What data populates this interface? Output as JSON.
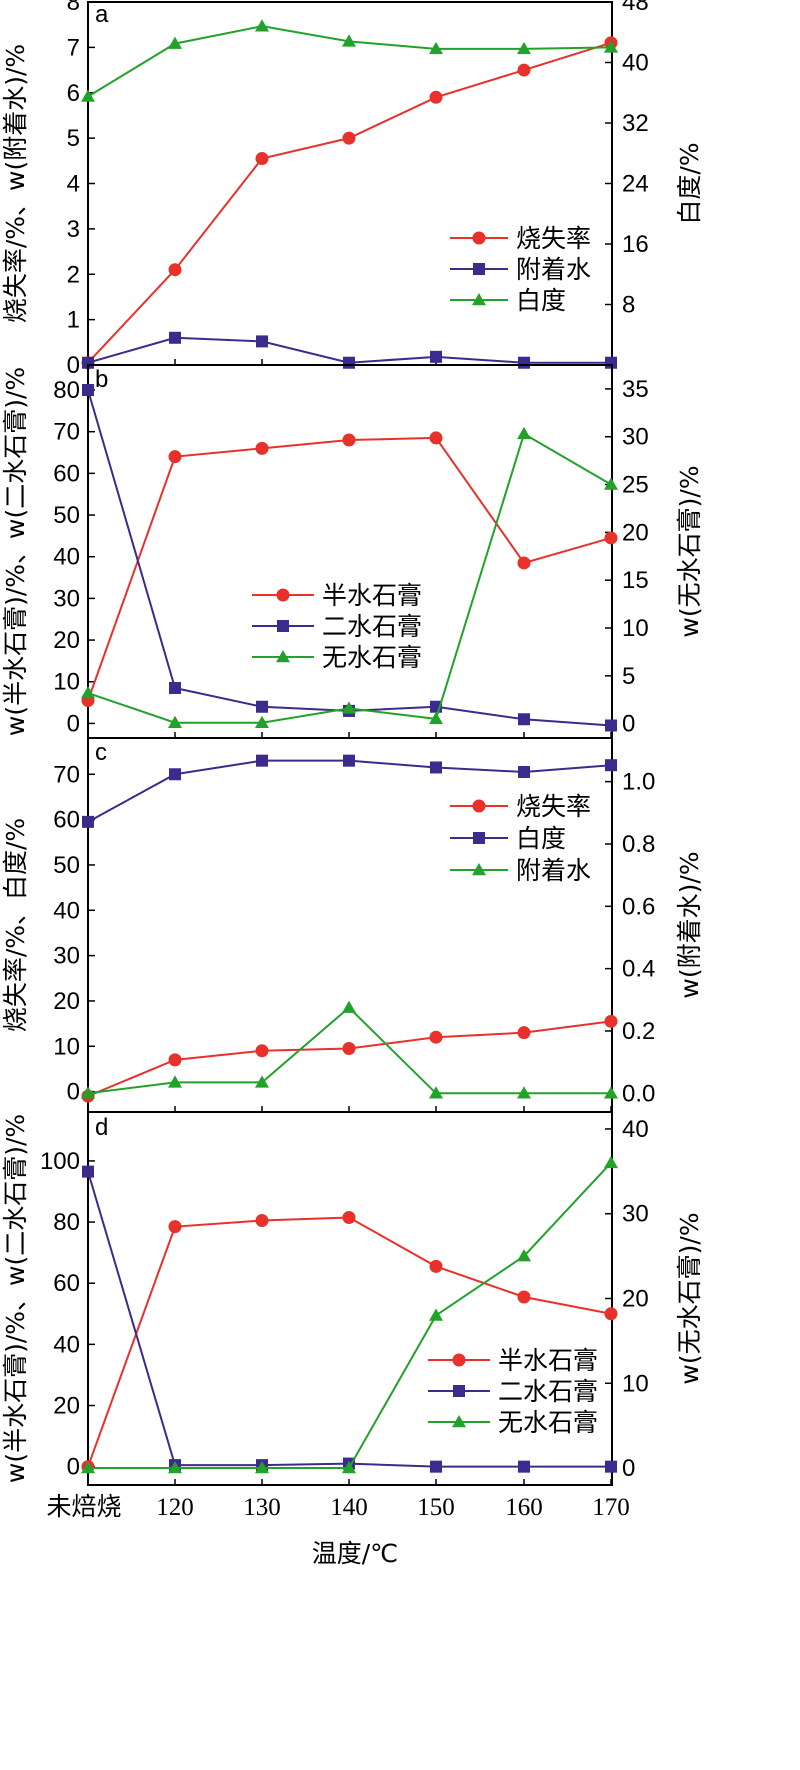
{
  "x_axis": {
    "categories": [
      "未焙烧",
      "120",
      "130",
      "140",
      "150",
      "160",
      "170"
    ],
    "label": "温度/℃"
  },
  "colors": {
    "red": "#e8312a",
    "blue": "#3c2a8c",
    "green": "#22a22a"
  },
  "chart_data": [
    {
      "type": "line",
      "panel_label": "a",
      "categories": [
        "未焙烧",
        "120",
        "130",
        "140",
        "150",
        "160",
        "170"
      ],
      "ylabel_left": "烧失率/%、w(附着水)/%",
      "ylabel_right": "白度/%",
      "ylim_left": [
        0,
        8
      ],
      "ylim_right": [
        0,
        48
      ],
      "yticks_left": [
        0,
        1,
        2,
        3,
        4,
        5,
        6,
        7,
        8
      ],
      "yticks_right": [
        8,
        16,
        24,
        32,
        40,
        48
      ],
      "legend_position": "center-right",
      "series": [
        {
          "name": "烧失率",
          "axis": "left",
          "color": "#e8312a",
          "marker": "circle",
          "values": [
            0.05,
            2.1,
            4.55,
            5.0,
            5.9,
            6.5,
            7.1
          ]
        },
        {
          "name": "附着水",
          "axis": "left",
          "color": "#3c2a8c",
          "marker": "square",
          "values": [
            0.05,
            0.6,
            0.52,
            0.05,
            0.18,
            0.05,
            0.05
          ]
        },
        {
          "name": "白度",
          "axis": "right",
          "color": "#22a22a",
          "marker": "triangle",
          "values": [
            35.5,
            42.5,
            44.8,
            42.8,
            41.8,
            41.8,
            42.0
          ]
        }
      ]
    },
    {
      "type": "line",
      "panel_label": "b",
      "categories": [
        "未焙烧",
        "120",
        "130",
        "140",
        "150",
        "160",
        "170"
      ],
      "ylabel_left": "w(半水石膏)/%、w(二水石膏)/%",
      "ylabel_right": "w(无水石膏)/%",
      "ylim_left": [
        -3.5,
        86
      ],
      "ylim_right": [
        -1.5,
        37.5
      ],
      "yticks_left": [
        0,
        10,
        20,
        30,
        40,
        50,
        60,
        70,
        80
      ],
      "yticks_right": [
        0,
        5,
        10,
        15,
        20,
        25,
        30,
        35
      ],
      "legend_position": "center",
      "series": [
        {
          "name": "半水石膏",
          "axis": "left",
          "color": "#e8312a",
          "marker": "circle",
          "values": [
            5.5,
            64.0,
            66.0,
            68.0,
            68.5,
            38.5,
            44.5
          ]
        },
        {
          "name": "二水石膏",
          "axis": "left",
          "color": "#3c2a8c",
          "marker": "square",
          "values": [
            80.0,
            8.5,
            4.0,
            3.0,
            4.0,
            1.0,
            -0.5
          ]
        },
        {
          "name": "无水石膏",
          "axis": "right",
          "color": "#22a22a",
          "marker": "triangle",
          "values": [
            3.2,
            0.1,
            0.1,
            1.6,
            0.5,
            30.3,
            25.0
          ]
        }
      ]
    },
    {
      "type": "line",
      "panel_label": "c",
      "categories": [
        "未焙烧",
        "120",
        "130",
        "140",
        "150",
        "160",
        "170"
      ],
      "ylabel_left": "烧失率/%、白度/%",
      "ylabel_right": "w(附着水)/%",
      "ylim_left": [
        -4.5,
        78
      ],
      "ylim_right": [
        -0.06,
        1.14
      ],
      "yticks_left": [
        0,
        10,
        20,
        30,
        40,
        50,
        60,
        70
      ],
      "yticks_right": [
        0.0,
        0.2,
        0.4,
        0.6,
        0.8,
        1.0
      ],
      "legend_position": "top-right",
      "series": [
        {
          "name": "烧失率",
          "axis": "left",
          "color": "#e8312a",
          "marker": "circle",
          "values": [
            -1.0,
            7.0,
            9.0,
            9.5,
            12.0,
            13.0,
            15.5
          ]
        },
        {
          "name": "白度",
          "axis": "left",
          "color": "#3c2a8c",
          "marker": "square",
          "values": [
            59.5,
            70.0,
            73.0,
            73.0,
            71.5,
            70.5,
            72.0
          ]
        },
        {
          "name": "附着水",
          "axis": "right",
          "color": "#22a22a",
          "marker": "triangle",
          "values": [
            0.0,
            0.035,
            0.035,
            0.275,
            0.0,
            0.0,
            0.0
          ]
        }
      ]
    },
    {
      "type": "line",
      "panel_label": "d",
      "categories": [
        "未焙烧",
        "120",
        "130",
        "140",
        "150",
        "160",
        "170"
      ],
      "ylabel_left": "w(半水石膏)/%、w(二水石膏)/%",
      "ylabel_right": "w(无水石膏)/%",
      "ylim_left": [
        -6,
        116
      ],
      "ylim_right": [
        -2,
        42
      ],
      "yticks_left": [
        0,
        20,
        40,
        60,
        80,
        100
      ],
      "yticks_right": [
        0,
        10,
        20,
        30,
        40
      ],
      "legend_position": "bottom-right",
      "series": [
        {
          "name": "半水石膏",
          "axis": "left",
          "color": "#e8312a",
          "marker": "circle",
          "values": [
            0.0,
            78.5,
            80.5,
            81.5,
            65.5,
            55.5,
            50.0
          ]
        },
        {
          "name": "二水石膏",
          "axis": "left",
          "color": "#3c2a8c",
          "marker": "square",
          "values": [
            96.5,
            0.5,
            0.5,
            1.0,
            0.0,
            0.0,
            0.0
          ]
        },
        {
          "name": "无水石膏",
          "axis": "right",
          "color": "#22a22a",
          "marker": "triangle",
          "values": [
            0.0,
            0.0,
            0.0,
            0.0,
            18.0,
            25.0,
            36.0
          ]
        }
      ]
    }
  ]
}
